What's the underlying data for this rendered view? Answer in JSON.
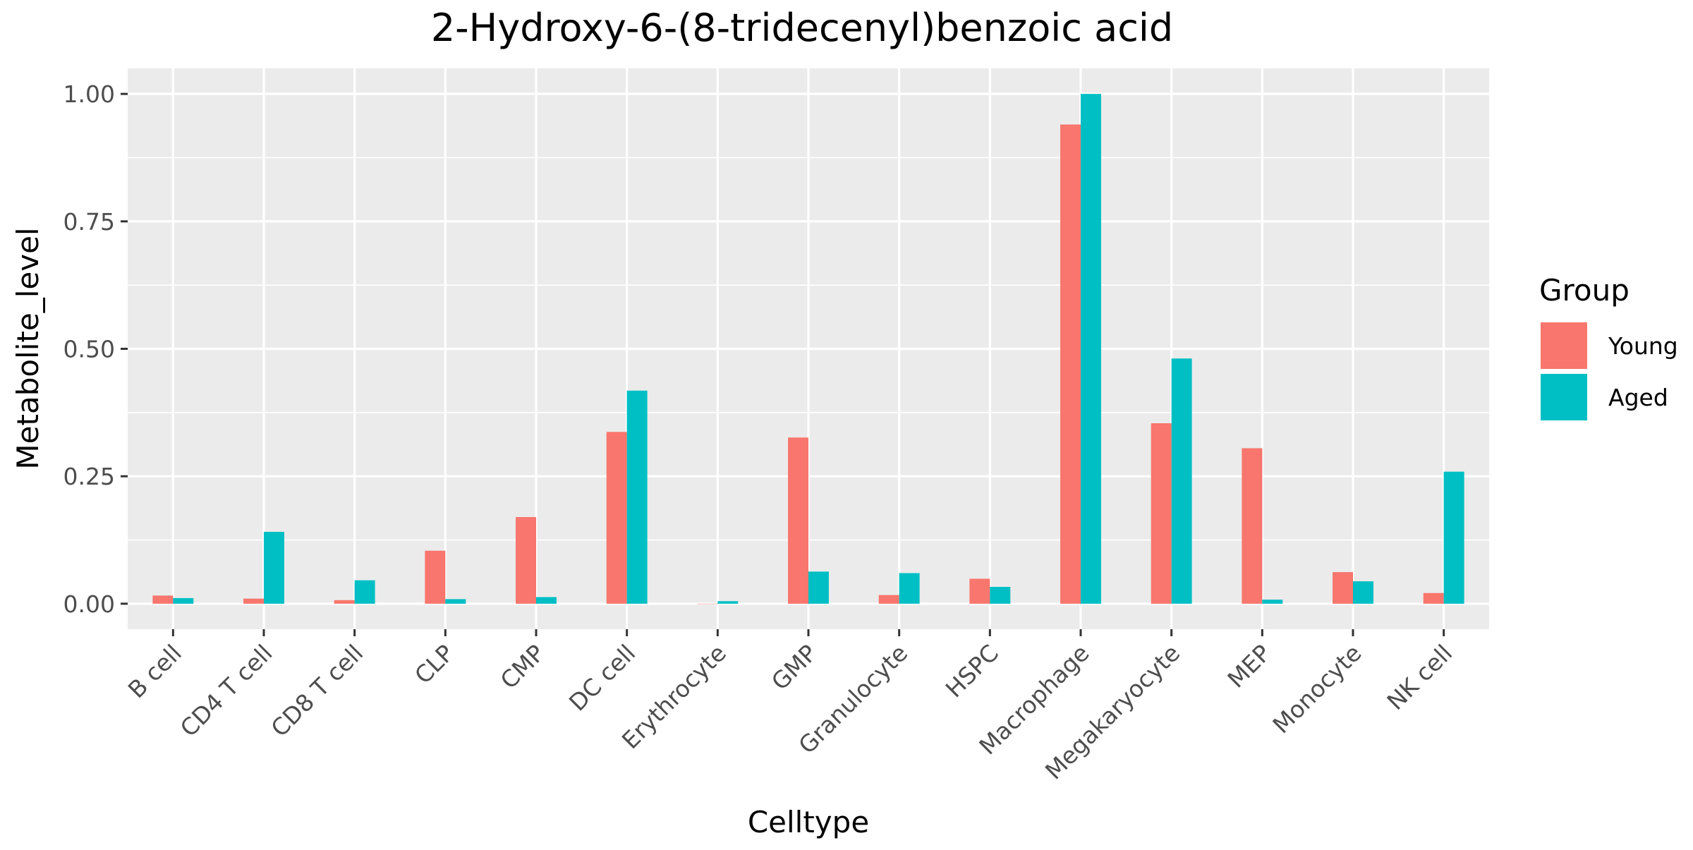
{
  "chart_data": {
    "type": "bar",
    "title": "2-Hydroxy-6-(8-tridecenyl)benzoic acid",
    "xlabel": "Celltype",
    "ylabel": "Metabolite_level",
    "ylim": [
      -0.05,
      1.05
    ],
    "yticks": [
      "0.00",
      "0.25",
      "0.50",
      "0.75",
      "1.00"
    ],
    "grid": true,
    "legend_position": "right",
    "legend_title": "Group",
    "categories": [
      "B cell",
      "CD4 T cell",
      "CD8 T cell",
      "CLP",
      "CMP",
      "DC cell",
      "Erythrocyte",
      "GMP",
      "Granulocyte",
      "HSPC",
      "Macrophage",
      "Megakaryocyte",
      "MEP",
      "Monocyte",
      "NK cell"
    ],
    "series": [
      {
        "name": "Young",
        "color": "#F8766D",
        "values": [
          0.016,
          0.01,
          0.007,
          0.104,
          0.17,
          0.337,
          0.0,
          0.326,
          0.017,
          0.049,
          0.94,
          0.354,
          0.305,
          0.062,
          0.021
        ]
      },
      {
        "name": "Aged",
        "color": "#00BFC4",
        "values": [
          0.011,
          0.141,
          0.046,
          0.009,
          0.013,
          0.418,
          0.005,
          0.063,
          0.06,
          0.033,
          1.0,
          0.481,
          0.008,
          0.044,
          0.259
        ]
      }
    ]
  }
}
